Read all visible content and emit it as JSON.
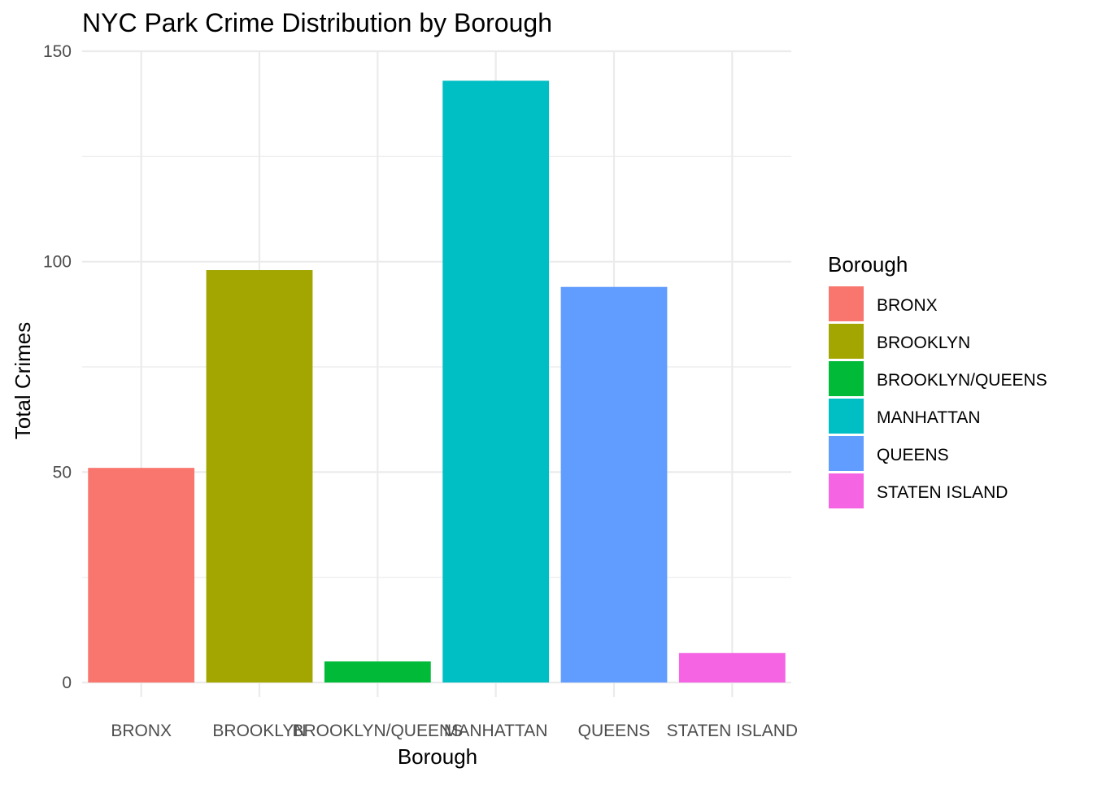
{
  "chart_data": {
    "type": "bar",
    "title": "NYC Park Crime Distribution by Borough",
    "xlabel": "Borough",
    "ylabel": "Total Crimes",
    "categories": [
      "BRONX",
      "BROOKLYN",
      "BROOKLYN/QUEENS",
      "MANHATTAN",
      "QUEENS",
      "STATEN ISLAND"
    ],
    "values": [
      51,
      98,
      5,
      143,
      94,
      7
    ],
    "colors": [
      "#F8766D",
      "#A3A500",
      "#00BA38",
      "#00BFC4",
      "#619CFF",
      "#F564E3"
    ],
    "ylim": [
      0,
      150
    ],
    "yticks": [
      0,
      50,
      100,
      150
    ],
    "grid": true,
    "legend": {
      "title": "Borough",
      "position": "right",
      "entries": [
        "BRONX",
        "BROOKLYN",
        "BROOKLYN/QUEENS",
        "MANHATTAN",
        "QUEENS",
        "STATEN ISLAND"
      ]
    }
  }
}
